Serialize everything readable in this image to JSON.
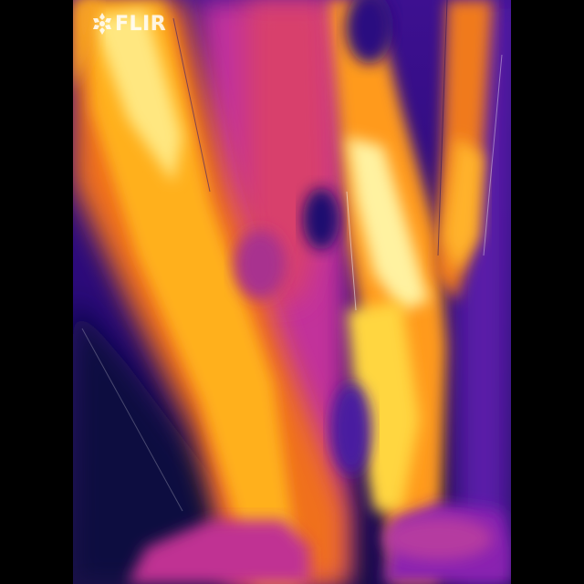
{
  "brand": {
    "logo_text": "FLIR",
    "logo_icon": "flame-snowflake-icon",
    "logo_color": "#ffffff"
  },
  "palette": {
    "cold": "#1a0870",
    "cool": "#5a1aa8",
    "mid": "#c2339b",
    "warm": "#f0701e",
    "hot": "#ffc21a",
    "hottest": "#fff4a8"
  }
}
